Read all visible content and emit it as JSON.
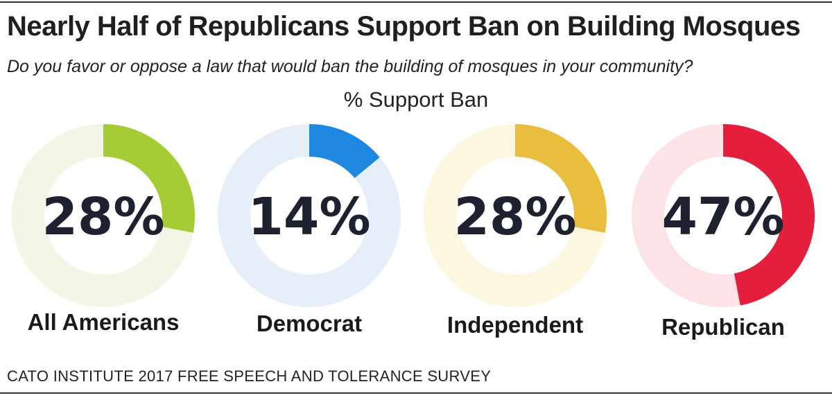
{
  "title": "Nearly Half of Republicans Support Ban on Building Mosques",
  "subtitle": "Do you favor or oppose a law that would ban the building of mosques in your community?",
  "metric_label": "% Support Ban",
  "source": "CATO INSTITUTE 2017 FREE SPEECH AND TOLERANCE SURVEY",
  "chart_data": {
    "type": "pie",
    "subtype": "donut",
    "title": "Nearly Half of Republicans Support Ban on Building Mosques",
    "subtitle": "Do you favor or oppose a law that would ban the building of mosques in your community?",
    "ylabel": "% Support Ban",
    "ylim": [
      0,
      100
    ],
    "categories": [
      "All Americans",
      "Democrat",
      "Independent",
      "Republican"
    ],
    "values": [
      28,
      14,
      28,
      47
    ],
    "labels": [
      "28%",
      "14%",
      "28%",
      "47%"
    ],
    "colors": [
      "#a5cc34",
      "#1e88e0",
      "#e9bd3d",
      "#e41f3d"
    ],
    "track_colors": [
      "#f1f6e5",
      "#e6eefa",
      "#fdf6e0",
      "#fde3e6"
    ]
  }
}
